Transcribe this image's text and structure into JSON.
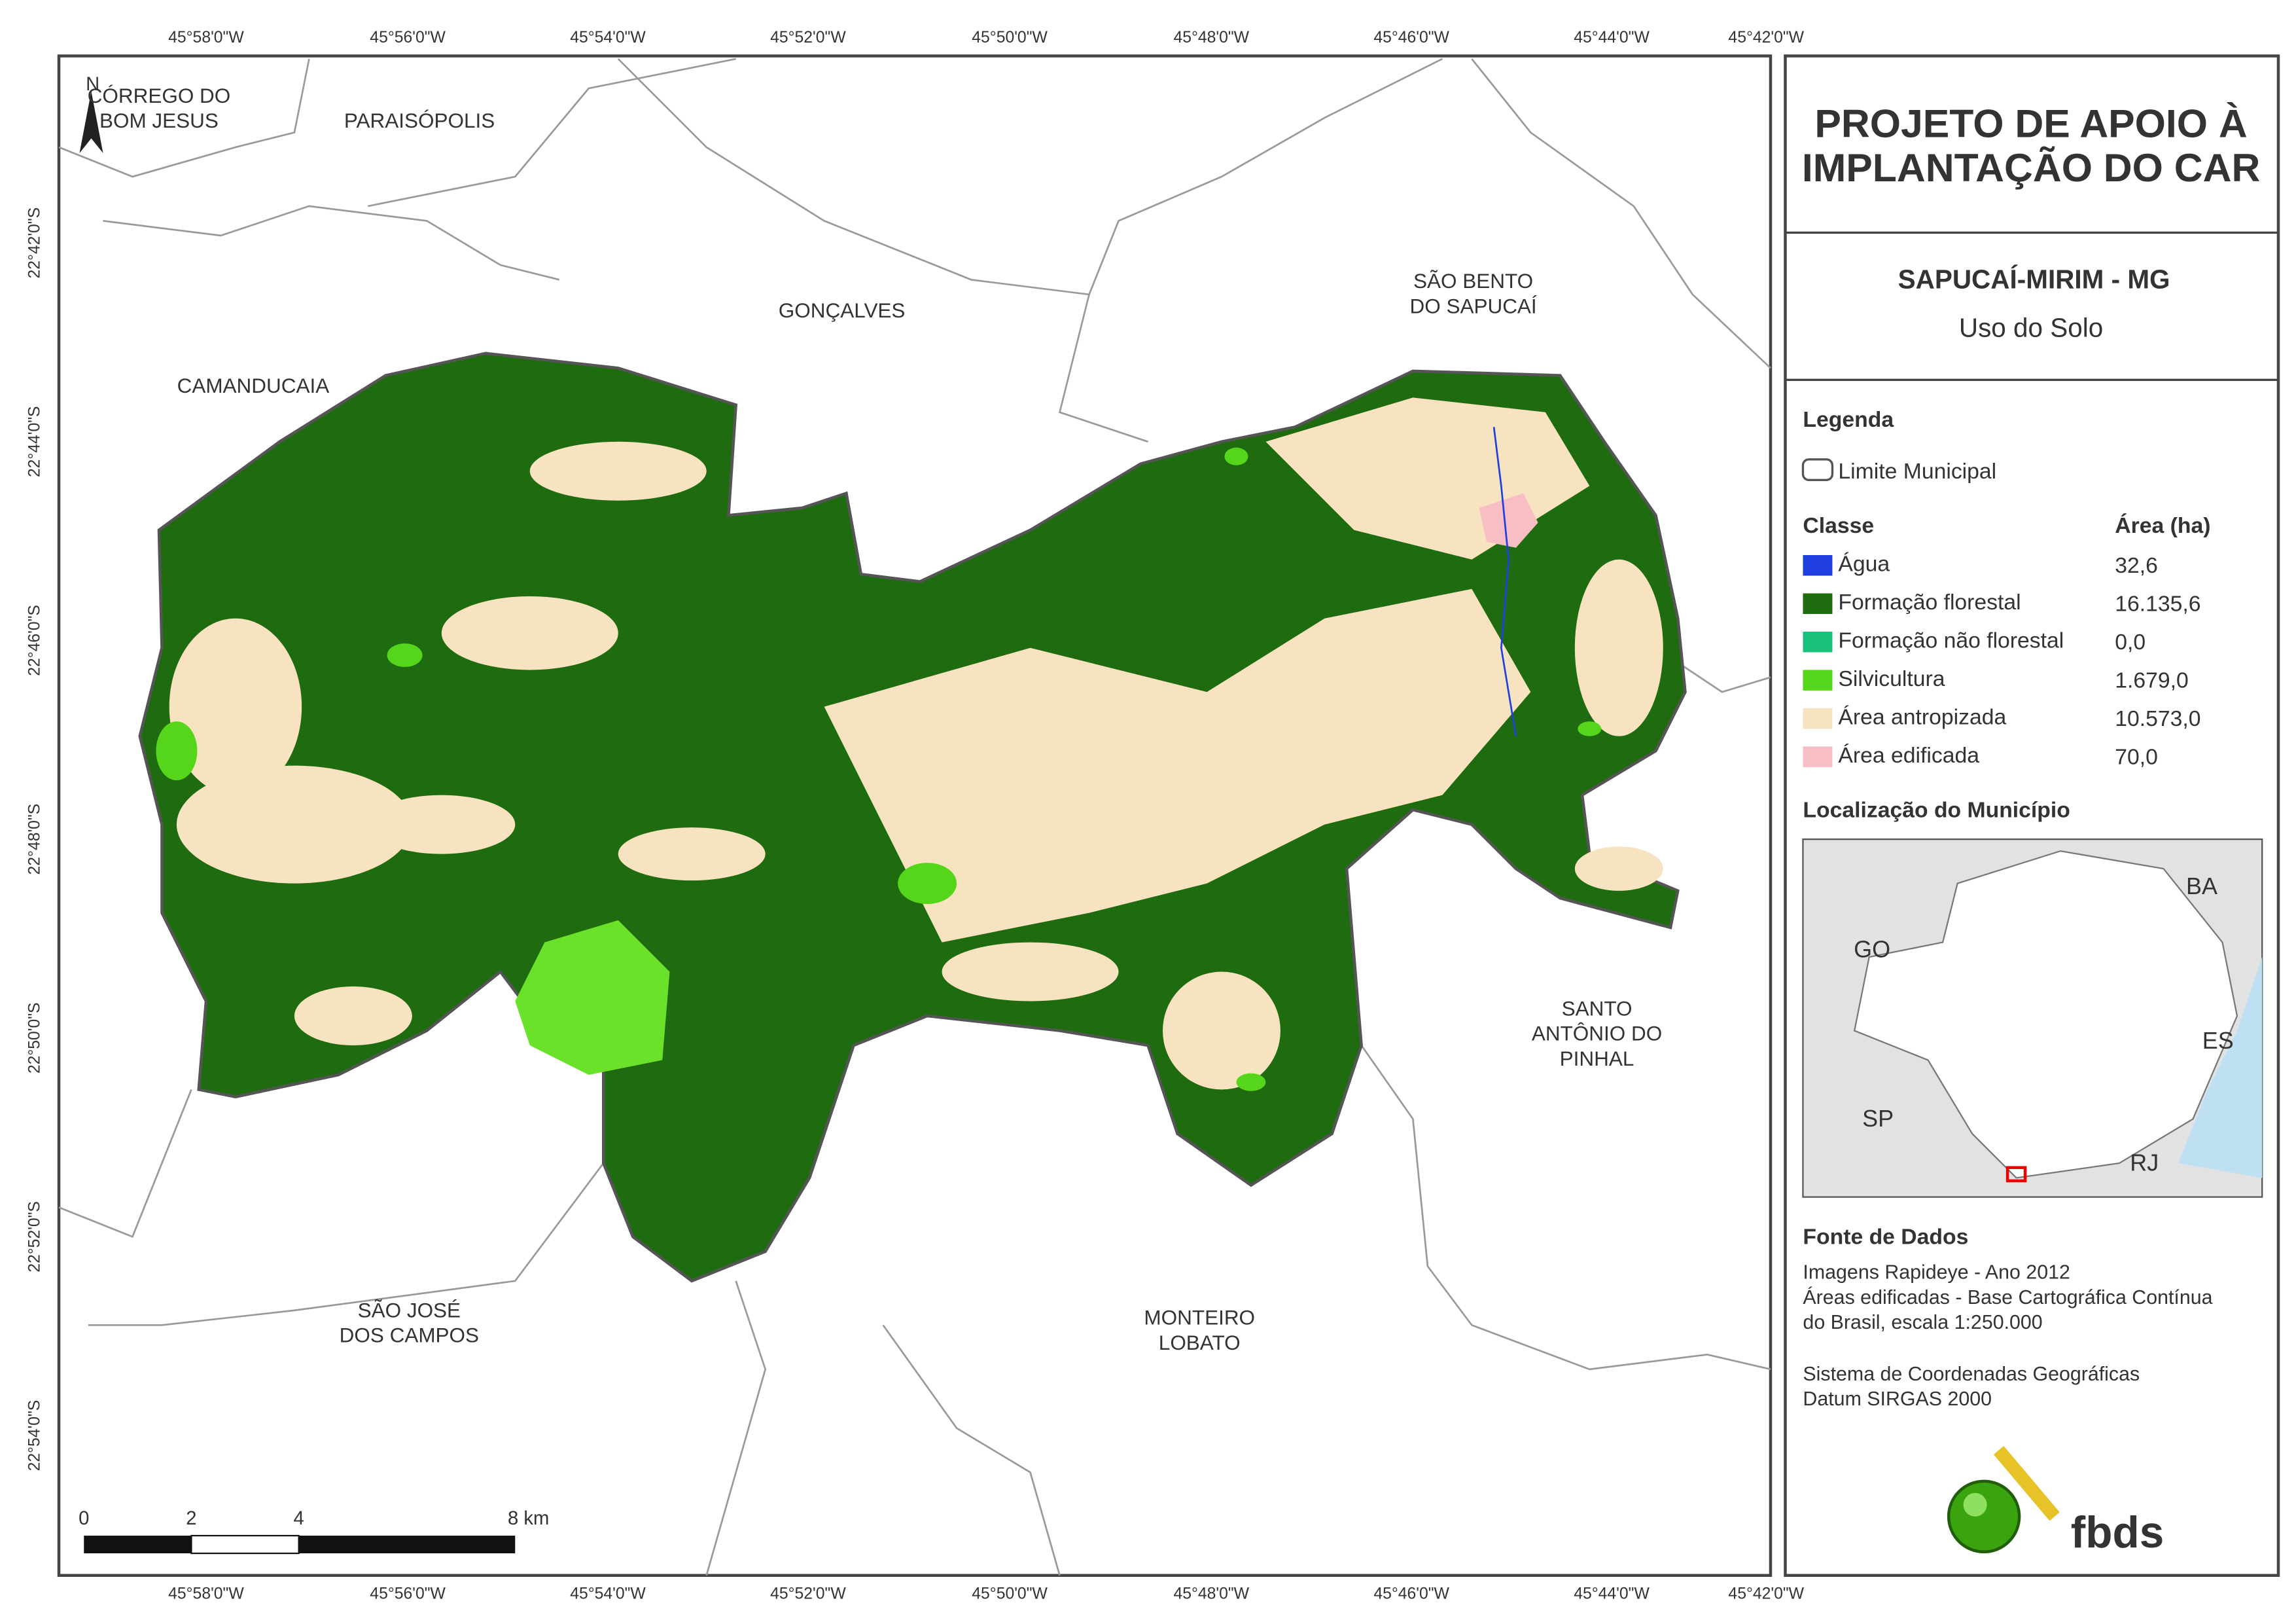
{
  "map": {
    "lon_labels": [
      "45°58'0\"W",
      "45°56'0\"W",
      "45°54'0\"W",
      "45°52'0\"W",
      "45°50'0\"W",
      "45°48'0\"W",
      "45°46'0\"W",
      "45°44'0\"W",
      "45°42'0\"W"
    ],
    "lat_labels": [
      "22°42'0\"S",
      "22°44'0\"S",
      "22°46'0\"S",
      "22°48'0\"S",
      "22°50'0\"S",
      "22°52'0\"S",
      "22°54'0\"S"
    ],
    "places": [
      {
        "lines": [
          "CÓRREGO DO",
          "BOM JESUS"
        ]
      },
      {
        "lines": [
          "PARAISÓPOLIS"
        ]
      },
      {
        "lines": [
          "GONÇALVES"
        ]
      },
      {
        "lines": [
          "SÃO BENTO",
          "DO SAPUCAÍ"
        ]
      },
      {
        "lines": [
          "CAMANDUCAIA"
        ]
      },
      {
        "lines": [
          "SANTO",
          "ANTÔNIO DO",
          "PINHAL"
        ]
      },
      {
        "lines": [
          "SÃO JOSÉ",
          "DOS CAMPOS"
        ]
      },
      {
        "lines": [
          "MONTEIRO",
          "LOBATO"
        ]
      }
    ],
    "north": "N",
    "scale_labels": [
      "0",
      "2",
      "4",
      "8 km"
    ]
  },
  "panel": {
    "title": [
      "PROJETO DE APOIO À",
      "IMPLANTAÇÃO DO CAR"
    ],
    "subtitle": "SAPUCAÍ-MIRIM - MG",
    "theme": "Uso do Solo",
    "legend_heading": "Legenda",
    "boundary": "Limite Municipal",
    "class_heading": "Classe",
    "area_heading": "Área (ha)",
    "classes": [
      {
        "name": "Água",
        "color": "#1f3fe0",
        "area": "32,6"
      },
      {
        "name": "Formação florestal",
        "color": "#1f6b0f",
        "area": "16.135,6"
      },
      {
        "name": "Formação não florestal",
        "color": "#19c07a",
        "area": "0,0"
      },
      {
        "name": "Silvicultura",
        "color": "#55d61a",
        "area": "1.679,0"
      },
      {
        "name": "Área antropizada",
        "color": "#f7e3bf",
        "area": "10.573,0"
      },
      {
        "name": "Área edificada",
        "color": "#f7bfc4",
        "area": "70,0"
      }
    ],
    "location_heading": "Localização do Município",
    "inset_labels": [
      "BA",
      "GO",
      "ES",
      "SP",
      "RJ"
    ],
    "sources_heading": "Fonte de Dados",
    "sources": [
      "Imagens Rapideye - Ano 2012",
      "Áreas edificadas - Base Cartográfica Contínua",
      "do Brasil, escala 1:250.000",
      "Sistema de Coordenadas Geográficas",
      "Datum SIRGAS 2000"
    ],
    "logo": "fbds"
  }
}
